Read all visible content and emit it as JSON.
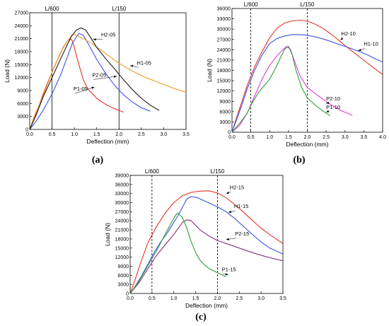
{
  "chart_data": [
    {
      "type": "line",
      "panel_label": "(a)",
      "xlabel": "Deflection (mm)",
      "ylabel": "Load (N)",
      "xlim": [
        0,
        3.5
      ],
      "ylim": [
        0,
        27000
      ],
      "xticks": [
        "0.0",
        "0.5",
        "1.0",
        "1.5",
        "2.0",
        "2.5",
        "3.0",
        "3.5"
      ],
      "yticks": [
        "0",
        "3000",
        "6000",
        "9000",
        "12000",
        "15000",
        "18000",
        "21000",
        "24000",
        "27000"
      ],
      "reference_lines": [
        {
          "label": "L/600",
          "x": 0.5,
          "style": "solid"
        },
        {
          "label": "L/150",
          "x": 2.0,
          "style": "solid"
        }
      ],
      "series": [
        {
          "name": "P1-05",
          "color": "#e8322a",
          "label_at": [
            0.98,
            9000
          ],
          "arrow_to": [
            1.45,
            9800
          ],
          "x": [
            0,
            0.1,
            0.2,
            0.3,
            0.45,
            0.6,
            0.75,
            0.85,
            0.9,
            0.95,
            1.0,
            1.1,
            1.2,
            1.3,
            1.5,
            1.7,
            1.9,
            2.1
          ],
          "y": [
            0,
            2500,
            5200,
            8200,
            12000,
            15600,
            19000,
            20500,
            21000,
            20600,
            19000,
            15000,
            11500,
            9400,
            7200,
            5800,
            4800,
            4000
          ]
        },
        {
          "name": "P2-05",
          "color": "#3c52e8",
          "label_at": [
            1.4,
            12200
          ],
          "arrow_to": [
            1.95,
            12300
          ],
          "x": [
            0,
            0.15,
            0.3,
            0.5,
            0.7,
            0.85,
            0.95,
            1.05,
            1.1,
            1.2,
            1.3,
            1.5,
            1.7,
            1.9,
            2.1,
            2.3,
            2.5,
            2.7
          ],
          "y": [
            0,
            2000,
            4400,
            8200,
            12800,
            17000,
            19800,
            21500,
            22200,
            21800,
            20000,
            16200,
            13000,
            10200,
            8000,
            6300,
            5000,
            4200
          ]
        },
        {
          "name": "H1-05",
          "color": "#f59c22",
          "label_at": [
            2.4,
            15000
          ],
          "arrow_to": [
            2.25,
            14800
          ],
          "x": [
            0,
            0.1,
            0.25,
            0.4,
            0.55,
            0.7,
            0.85,
            0.95,
            1.0,
            1.1,
            1.2,
            1.4,
            1.6,
            1.8,
            2.0,
            2.3,
            2.6,
            2.9,
            3.2,
            3.5
          ],
          "y": [
            0,
            3000,
            6500,
            10500,
            14500,
            18000,
            20500,
            21800,
            22000,
            21500,
            21000,
            19800,
            18300,
            16800,
            15300,
            13500,
            12000,
            10800,
            9600,
            8600
          ]
        },
        {
          "name": "H2-05",
          "color": "#1a1a1a",
          "label_at": [
            1.6,
            21500
          ],
          "arrow_to": [
            1.42,
            20800
          ],
          "x": [
            0,
            0.15,
            0.3,
            0.5,
            0.7,
            0.85,
            0.95,
            1.05,
            1.15,
            1.25,
            1.35,
            1.5,
            1.7,
            1.9,
            2.1,
            2.3,
            2.5,
            2.7,
            2.9
          ],
          "y": [
            0,
            3500,
            7500,
            12000,
            16500,
            19800,
            21800,
            23000,
            23500,
            23000,
            21500,
            19000,
            16400,
            14000,
            11500,
            9200,
            7200,
            5600,
            4400
          ]
        }
      ]
    },
    {
      "type": "line",
      "panel_label": "(b)",
      "xlabel": "Deflection (mm)",
      "ylabel": "Load (N)",
      "xlim": [
        0,
        4.0
      ],
      "ylim": [
        0,
        36000
      ],
      "xticks": [
        "0.0",
        "0.5",
        "1.0",
        "1.5",
        "2.0",
        "2.5",
        "3.0",
        "3.5",
        "4.0"
      ],
      "yticks": [
        "0",
        "3000",
        "6000",
        "9000",
        "12000",
        "15000",
        "18000",
        "21000",
        "24000",
        "27000",
        "30000",
        "33000",
        "36000"
      ],
      "reference_lines": [
        {
          "label": "L/600",
          "x": 0.5,
          "style": "dashed"
        },
        {
          "label": "L/150",
          "x": 2.0,
          "style": "dashed"
        }
      ],
      "series": [
        {
          "name": "H2-10",
          "color": "#e8322a",
          "label_at": [
            2.9,
            28200
          ],
          "arrow_to": [
            2.88,
            26800
          ],
          "x": [
            0,
            0.1,
            0.25,
            0.4,
            0.6,
            0.8,
            1.0,
            1.2,
            1.4,
            1.6,
            1.8,
            2.0,
            2.2,
            2.4,
            2.6,
            2.8,
            3.0,
            3.2,
            3.4,
            3.6,
            3.8,
            4.0
          ],
          "y": [
            0,
            3500,
            8500,
            13500,
            19000,
            23500,
            27500,
            30300,
            31800,
            32400,
            32600,
            32300,
            31500,
            30300,
            28800,
            27100,
            25200,
            23500,
            21800,
            20100,
            18400,
            16800
          ]
        },
        {
          "name": "H1-10",
          "color": "#3c52e8",
          "label_at": [
            3.5,
            25200
          ],
          "arrow_to": [
            3.35,
            23700
          ],
          "x": [
            0,
            0.1,
            0.25,
            0.4,
            0.6,
            0.8,
            1.0,
            1.2,
            1.4,
            1.6,
            1.8,
            2.0,
            2.2,
            2.4,
            2.6,
            2.8,
            3.0,
            3.2,
            3.4,
            3.6,
            3.8,
            4.0
          ],
          "y": [
            0,
            3000,
            7500,
            12500,
            18000,
            22500,
            25800,
            27300,
            28000,
            28400,
            28400,
            28200,
            27800,
            27200,
            26500,
            25700,
            25000,
            24200,
            23400,
            22500,
            21400,
            20400
          ]
        },
        {
          "name": "P2-10",
          "color": "#e83ce0",
          "label_at": [
            2.5,
            9300
          ],
          "arrow_to": [
            2.5,
            8400
          ],
          "x": [
            0,
            0.2,
            0.4,
            0.6,
            0.8,
            1.0,
            1.2,
            1.35,
            1.45,
            1.55,
            1.65,
            1.8,
            2.0,
            2.3,
            2.6,
            2.9,
            3.2
          ],
          "y": [
            0,
            2000,
            5500,
            10500,
            15500,
            19500,
            22300,
            24000,
            25000,
            24200,
            21000,
            16500,
            13000,
            10500,
            8200,
            6300,
            4900
          ]
        },
        {
          "name": "P1-10",
          "color": "#2e9e36",
          "label_at": [
            2.5,
            6800
          ],
          "arrow_to": [
            2.5,
            5800
          ],
          "x": [
            0,
            0.2,
            0.4,
            0.55,
            0.7,
            0.85,
            1.0,
            1.15,
            1.3,
            1.4,
            1.5,
            1.6,
            1.7,
            1.85,
            2.0,
            2.2,
            2.4,
            2.6
          ],
          "y": [
            0,
            2500,
            5500,
            8800,
            11500,
            13500,
            15500,
            18500,
            22000,
            24200,
            25000,
            22500,
            18000,
            13000,
            10000,
            8000,
            6300,
            4800
          ]
        }
      ]
    },
    {
      "type": "line",
      "panel_label": "(c)",
      "xlabel": "Deflection (mm)",
      "ylabel": "Load (N)",
      "xlim": [
        0,
        3.5
      ],
      "ylim": [
        0,
        39000
      ],
      "xticks": [
        "0.0",
        "0.5",
        "1.0",
        "1.5",
        "2.0",
        "2.5",
        "3.0",
        "3.5"
      ],
      "yticks": [
        "0",
        "3000",
        "6000",
        "9000",
        "12000",
        "15000",
        "18000",
        "21000",
        "24000",
        "27000",
        "30000",
        "33000",
        "36000",
        "39000"
      ],
      "reference_lines": [
        {
          "label": "L/600",
          "x": 0.5,
          "style": "dashed"
        },
        {
          "label": "L/150",
          "x": 2.0,
          "style": "dashed"
        }
      ],
      "series": [
        {
          "name": "H2-15",
          "color": "#e8322a",
          "label_at": [
            2.28,
            34500
          ],
          "arrow_to": [
            2.2,
            33000
          ],
          "x": [
            0,
            0.1,
            0.25,
            0.4,
            0.6,
            0.8,
            1.0,
            1.2,
            1.4,
            1.6,
            1.8,
            2.0,
            2.2,
            2.4,
            2.6,
            2.8,
            3.0,
            3.2,
            3.5
          ],
          "y": [
            0,
            4000,
            10500,
            16500,
            22000,
            26500,
            30000,
            32300,
            33400,
            33800,
            33900,
            33200,
            31600,
            29300,
            26800,
            24100,
            21600,
            19400,
            16500
          ]
        },
        {
          "name": "H1-15",
          "color": "#3c52e8",
          "label_at": [
            2.38,
            28200
          ],
          "arrow_to": [
            2.25,
            26800
          ],
          "x": [
            0,
            0.1,
            0.25,
            0.4,
            0.55,
            0.7,
            0.85,
            1.0,
            1.1,
            1.2,
            1.3,
            1.4,
            1.55,
            1.7,
            1.85,
            2.0,
            2.2,
            2.4,
            2.6,
            2.8,
            3.0,
            3.2,
            3.5
          ],
          "y": [
            0,
            2000,
            5500,
            9500,
            13500,
            17000,
            20000,
            23500,
            25800,
            28500,
            31200,
            32000,
            31600,
            30600,
            29600,
            28600,
            27000,
            24700,
            22100,
            19500,
            17000,
            15000,
            13000
          ]
        },
        {
          "name": "P2-15",
          "color": "#8a2e7e",
          "label_at": [
            2.4,
            19200
          ],
          "arrow_to": [
            2.2,
            17800
          ],
          "x": [
            0,
            0.2,
            0.4,
            0.6,
            0.8,
            1.0,
            1.1,
            1.2,
            1.3,
            1.4,
            1.5,
            1.6,
            1.8,
            2.0,
            2.2,
            2.5,
            2.8,
            3.1,
            3.5
          ],
          "y": [
            0,
            3500,
            8000,
            12500,
            16000,
            19500,
            21500,
            23500,
            24300,
            24000,
            22500,
            21000,
            19000,
            17500,
            16500,
            15000,
            13500,
            12200,
            10800
          ]
        },
        {
          "name": "P1-15",
          "color": "#2e9e36",
          "label_at": [
            2.1,
            7400
          ],
          "arrow_to": [
            2.25,
            6200
          ],
          "x": [
            0,
            0.2,
            0.4,
            0.6,
            0.8,
            0.95,
            1.05,
            1.1,
            1.2,
            1.3,
            1.4,
            1.5,
            1.6,
            1.7,
            1.8,
            1.95,
            2.1,
            2.2
          ],
          "y": [
            0,
            4000,
            9000,
            14000,
            19500,
            23500,
            26000,
            26500,
            25000,
            21500,
            17000,
            13500,
            11000,
            9500,
            8300,
            7200,
            6200,
            5500
          ]
        }
      ]
    }
  ]
}
